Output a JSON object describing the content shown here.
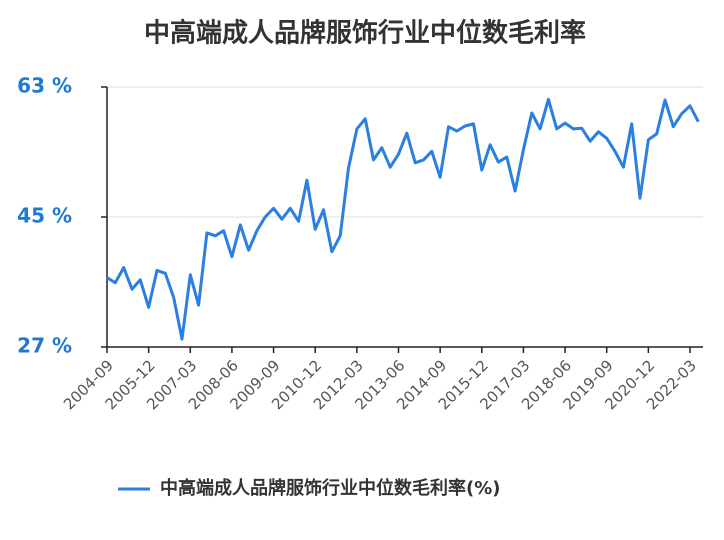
{
  "chart_data": {
    "type": "line",
    "title": "中高端成人品牌服饰行业中位数毛利率",
    "categories": [
      "2004-09",
      null,
      null,
      null,
      null,
      "2005-12",
      null,
      null,
      null,
      null,
      "2007-03",
      null,
      null,
      null,
      null,
      "2008-06",
      null,
      null,
      null,
      null,
      "2009-09",
      null,
      null,
      null,
      null,
      "2010-12",
      null,
      null,
      null,
      null,
      "2012-03",
      null,
      null,
      null,
      null,
      "2013-06",
      null,
      null,
      null,
      null,
      "2014-09",
      null,
      null,
      null,
      null,
      "2015-12",
      null,
      null,
      null,
      null,
      "2017-03",
      null,
      null,
      null,
      null,
      "2018-06",
      null,
      null,
      null,
      null,
      "2019-09",
      null,
      null,
      null,
      null,
      "2020-12",
      null,
      null,
      null,
      null,
      "2022-03",
      null
    ],
    "series": [
      {
        "name": "中高端成人品牌服饰行业中位数毛利率(%)",
        "color": "#2a7fe0",
        "values": [
          36.6,
          35.9,
          38.0,
          35.0,
          36.3,
          32.5,
          37.6,
          37.2,
          33.9,
          28.1,
          37.0,
          32.8,
          42.8,
          42.4,
          43.1,
          39.5,
          43.9,
          40.4,
          43.1,
          45.0,
          46.2,
          44.7,
          46.2,
          44.4,
          50.1,
          43.3,
          46.0,
          40.2,
          42.4,
          51.8,
          57.2,
          58.6,
          52.9,
          54.6,
          51.9,
          53.7,
          56.6,
          52.5,
          52.9,
          54.1,
          50.5,
          57.5,
          56.9,
          57.6,
          57.9,
          51.5,
          55.0,
          52.6,
          53.3,
          48.6,
          54.3,
          59.4,
          57.2,
          61.3,
          57.2,
          58.0,
          57.2,
          57.3,
          55.5,
          56.8,
          55.9,
          54.1,
          51.9,
          57.9,
          47.6,
          55.7,
          56.5,
          61.2,
          57.5,
          59.3,
          60.4,
          58.2
        ]
      }
    ],
    "ylim": [
      27,
      63
    ],
    "yticks": [
      {
        "value": 27,
        "label": "27 %"
      },
      {
        "value": 45,
        "label": "45 %"
      },
      {
        "value": 63,
        "label": "63 %"
      }
    ],
    "grid": true
  }
}
